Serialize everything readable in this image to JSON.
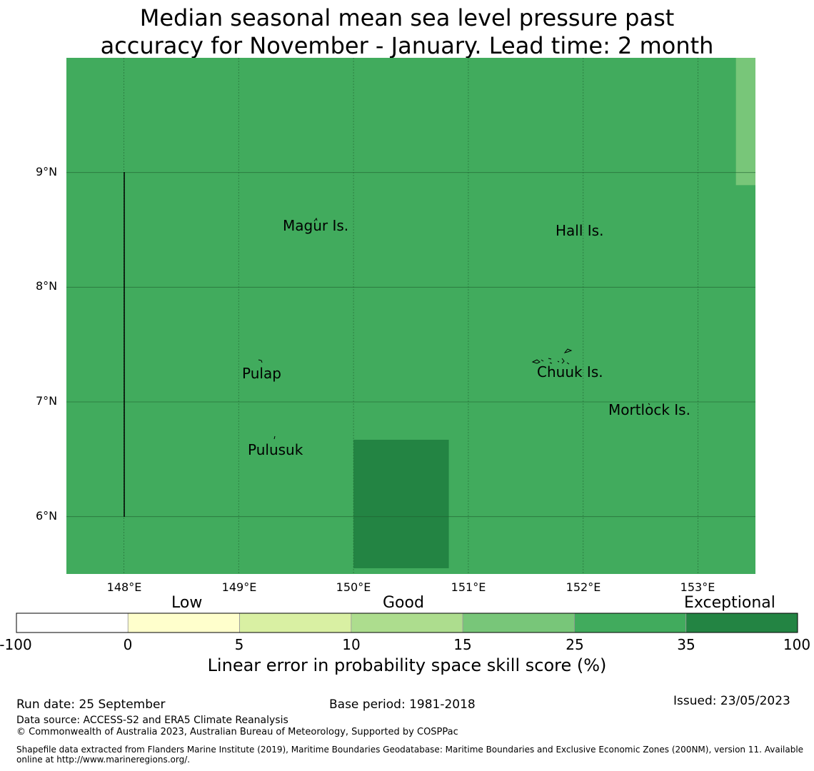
{
  "title": {
    "line1": "Median seasonal mean sea level pressure past",
    "line2": "accuracy for November - January. Lead time: 2 month"
  },
  "map": {
    "lat_ticks": [
      "9°N",
      "8°N",
      "7°N",
      "6°N"
    ],
    "lon_ticks": [
      "148°E",
      "149°E",
      "150°E",
      "151°E",
      "152°E",
      "153°E"
    ],
    "places": [
      {
        "name": "Magur Is."
      },
      {
        "name": "Hall Is."
      },
      {
        "name": "Pulap"
      },
      {
        "name": "Chuuk Is."
      },
      {
        "name": "Mortlock Is."
      },
      {
        "name": "Pulusuk"
      }
    ],
    "cells": [
      {
        "category": "25 to 35",
        "color": "#41ab5d",
        "lon": [
          147.5,
          153.5
        ],
        "lat": [
          5.5,
          10.0
        ]
      },
      {
        "category": "15 to 25",
        "color": "#78c679",
        "lon": [
          153.33,
          153.5
        ],
        "lat": [
          8.89,
          10.0
        ]
      },
      {
        "category": "35 to 100",
        "color": "#238443",
        "lon": [
          150.0,
          150.83
        ],
        "lat": [
          5.55,
          6.67
        ]
      }
    ]
  },
  "legend": {
    "categories": [
      "Low",
      "Good",
      "Exceptional"
    ],
    "ticks": [
      "-100",
      "0",
      "5",
      "10",
      "15",
      "25",
      "35",
      "100"
    ],
    "colors": [
      "#ffffff",
      "#ffffcc",
      "#d9f0a3",
      "#addd8e",
      "#78c679",
      "#41ab5d",
      "#238443"
    ],
    "title": "Linear error in probability space skill score (%)"
  },
  "footer": {
    "run_date": "Run date: 25 September",
    "base_period": "Base period: 1981-2018",
    "issued": "Issued: 23/05/2023",
    "data_source": "Data source: ACCESS-S2 and ERA5 Climate Reanalysis",
    "copyright": "© Commonwealth of Australia 2023, Australian Bureau of Meteorology, Supported by COSPPac",
    "shapefile_line1": "Shapefile data extracted from Flanders Marine Institute (2019), Maritime Boundaries Geodatabase: Maritime Boundaries and Exclusive Economic Zones (200NM), version 11. Available",
    "shapefile_line2": "online at http://www.marineregions.org/."
  }
}
